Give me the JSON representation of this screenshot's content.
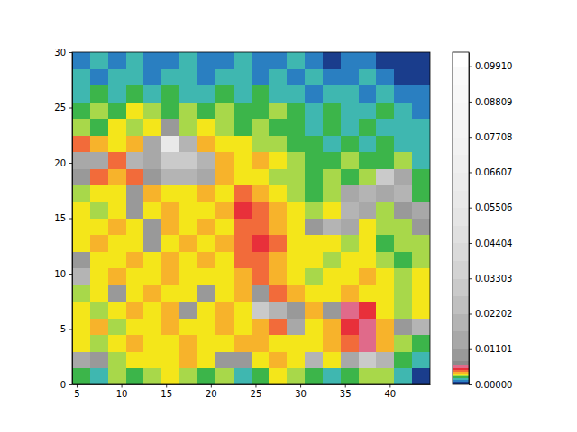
{
  "chart_data": {
    "type": "heatmap",
    "xlim": [
      4.5,
      44.5
    ],
    "ylim": [
      0,
      30
    ],
    "xticks": [
      5,
      10,
      15,
      20,
      25,
      30,
      35,
      40
    ],
    "yticks": [
      0,
      5,
      10,
      15,
      20,
      25,
      30
    ],
    "x_edges": [
      4.5,
      6.5,
      8.5,
      10.5,
      12.5,
      14.5,
      16.5,
      18.5,
      20.5,
      22.5,
      24.5,
      26.5,
      28.5,
      30.5,
      32.5,
      34.5,
      36.5,
      38.5,
      40.5,
      42.5,
      44.5
    ],
    "y_edges": [
      0,
      1.5,
      3,
      4.5,
      6,
      7.5,
      9,
      10.5,
      12,
      13.5,
      15,
      16.5,
      18,
      19.5,
      21,
      22.5,
      24,
      25.5,
      27,
      28.5,
      30
    ],
    "values": [
      [
        0.0022,
        0.0017,
        0.0027,
        0.0022,
        0.0027,
        0.0032,
        0.0027,
        0.0022,
        0.0027,
        0.0017,
        0.0022,
        0.0032,
        0.0027,
        0.0022,
        0.0017,
        0.0022,
        0.0027,
        0.0027,
        0.0017,
        0.0008
      ],
      [
        0.014,
        0.009,
        0.0027,
        0.0032,
        0.0032,
        0.0032,
        0.0037,
        0.0032,
        0.009,
        0.009,
        0.0032,
        0.0037,
        0.0032,
        0.02,
        0.0032,
        0.014,
        0.03,
        0.02,
        0.0022,
        0.0017
      ],
      [
        0.0032,
        0.0027,
        0.0032,
        0.0037,
        0.0032,
        0.0032,
        0.0037,
        0.0032,
        0.0032,
        0.0037,
        0.0037,
        0.0032,
        0.0032,
        0.0032,
        0.0037,
        0.0042,
        0.0055,
        0.0037,
        0.0027,
        0.0022
      ],
      [
        0.0032,
        0.0037,
        0.0027,
        0.0032,
        0.0032,
        0.0037,
        0.0032,
        0.0032,
        0.0037,
        0.0032,
        0.0037,
        0.0042,
        0.014,
        0.0032,
        0.0037,
        0.0047,
        0.0055,
        0.0037,
        0.009,
        0.02
      ],
      [
        0.0032,
        0.0027,
        0.0032,
        0.0037,
        0.0032,
        0.0037,
        0.009,
        0.0032,
        0.0037,
        0.0032,
        0.03,
        0.02,
        0.009,
        0.0037,
        0.009,
        0.0055,
        0.0047,
        0.0032,
        0.0027,
        0.0032
      ],
      [
        0.0027,
        0.0032,
        0.009,
        0.0032,
        0.0037,
        0.0032,
        0.0032,
        0.009,
        0.0032,
        0.0037,
        0.009,
        0.0042,
        0.0037,
        0.0032,
        0.0032,
        0.0037,
        0.0032,
        0.0032,
        0.0027,
        0.0032
      ],
      [
        0.02,
        0.0032,
        0.0037,
        0.0032,
        0.0032,
        0.0037,
        0.0032,
        0.0032,
        0.0032,
        0.0037,
        0.0042,
        0.0037,
        0.0032,
        0.0027,
        0.0032,
        0.0032,
        0.0037,
        0.0032,
        0.0027,
        0.0032
      ],
      [
        0.009,
        0.0032,
        0.0032,
        0.0037,
        0.0032,
        0.0037,
        0.0032,
        0.0037,
        0.0032,
        0.0042,
        0.0042,
        0.0037,
        0.0032,
        0.0032,
        0.0027,
        0.0032,
        0.0032,
        0.0027,
        0.0022,
        0.0027
      ],
      [
        0.0032,
        0.0037,
        0.0032,
        0.0032,
        0.009,
        0.0032,
        0.0037,
        0.0032,
        0.0037,
        0.0042,
        0.0047,
        0.0042,
        0.0032,
        0.0032,
        0.0032,
        0.0027,
        0.0032,
        0.0022,
        0.0027,
        0.0027
      ],
      [
        0.0032,
        0.0032,
        0.0037,
        0.0032,
        0.009,
        0.0037,
        0.0032,
        0.0037,
        0.0032,
        0.0042,
        0.0042,
        0.0037,
        0.0032,
        0.009,
        0.02,
        0.014,
        0.0032,
        0.0027,
        0.0027,
        0.009
      ],
      [
        0.0032,
        0.0027,
        0.0032,
        0.009,
        0.0032,
        0.0037,
        0.0032,
        0.0032,
        0.0037,
        0.0047,
        0.0042,
        0.0037,
        0.0032,
        0.0027,
        0.0032,
        0.02,
        0.014,
        0.0027,
        0.009,
        0.014
      ],
      [
        0.0027,
        0.0032,
        0.0032,
        0.009,
        0.0037,
        0.0032,
        0.0032,
        0.0037,
        0.0032,
        0.0042,
        0.0037,
        0.0032,
        0.0027,
        0.0022,
        0.0027,
        0.014,
        0.02,
        0.014,
        0.02,
        0.0022
      ],
      [
        0.009,
        0.0042,
        0.0037,
        0.0042,
        0.009,
        0.02,
        0.02,
        0.014,
        0.0037,
        0.0032,
        0.0032,
        0.0027,
        0.0027,
        0.0022,
        0.0027,
        0.0022,
        0.0027,
        0.03,
        0.014,
        0.0022
      ],
      [
        0.014,
        0.014,
        0.0042,
        0.02,
        0.014,
        0.03,
        0.03,
        0.02,
        0.0037,
        0.0032,
        0.0037,
        0.0032,
        0.0027,
        0.0022,
        0.0022,
        0.0027,
        0.0022,
        0.0022,
        0.0027,
        0.0017
      ],
      [
        0.0042,
        0.0037,
        0.0032,
        0.0037,
        0.014,
        0.06,
        0.02,
        0.0037,
        0.0032,
        0.0032,
        0.0027,
        0.0027,
        0.0022,
        0.0022,
        0.0017,
        0.0022,
        0.0017,
        0.0022,
        0.0017,
        0.0017
      ],
      [
        0.0027,
        0.0022,
        0.0032,
        0.0027,
        0.0032,
        0.009,
        0.0027,
        0.0032,
        0.0027,
        0.0022,
        0.0027,
        0.0022,
        0.0022,
        0.0017,
        0.0022,
        0.0017,
        0.0022,
        0.0017,
        0.0017,
        0.0017
      ],
      [
        0.0022,
        0.0027,
        0.0022,
        0.0032,
        0.0027,
        0.0022,
        0.0027,
        0.0022,
        0.0027,
        0.0022,
        0.0022,
        0.0027,
        0.0022,
        0.0017,
        0.0022,
        0.0017,
        0.0017,
        0.0022,
        0.0017,
        0.0012
      ],
      [
        0.0017,
        0.0022,
        0.0017,
        0.0022,
        0.0017,
        0.0022,
        0.0017,
        0.0017,
        0.0022,
        0.0017,
        0.0022,
        0.0017,
        0.0017,
        0.0012,
        0.0017,
        0.0017,
        0.0012,
        0.0017,
        0.0012,
        0.0012
      ],
      [
        0.0017,
        0.0012,
        0.0017,
        0.0017,
        0.0012,
        0.0017,
        0.0017,
        0.0012,
        0.0017,
        0.0017,
        0.0012,
        0.0017,
        0.0012,
        0.0017,
        0.0012,
        0.0012,
        0.0017,
        0.0012,
        0.0008,
        0.0008
      ],
      [
        0.0012,
        0.0017,
        0.0012,
        0.0017,
        0.0012,
        0.0012,
        0.0017,
        0.0012,
        0.0012,
        0.0017,
        0.0012,
        0.0012,
        0.0017,
        0.0012,
        0.0008,
        0.0012,
        0.0012,
        0.0008,
        0.0008,
        0.0008
      ]
    ],
    "colorbar": {
      "range": [
        0,
        0.1035
      ],
      "levels": [
        0,
        0.001,
        0.0015,
        0.002,
        0.0025,
        0.003,
        0.0035,
        0.004,
        0.0045,
        0.005,
        0.006,
        0.0075,
        0.011,
        0.0165,
        0.022,
        0.0275,
        0.033,
        0.0385,
        0.044,
        0.0495,
        0.055,
        0.0605,
        0.066,
        0.0715,
        0.077,
        0.0825,
        0.088,
        0.0935,
        0.099,
        0.1035
      ],
      "colors": [
        "#1a3d8c",
        "#2a7fc1",
        "#3fb7b0",
        "#3cb54a",
        "#a8d84a",
        "#f4e61a",
        "#f7b32b",
        "#f26b3a",
        "#e8303a",
        "#e06a8a",
        "#8a8a8a",
        "#999999",
        "#a8a8a8",
        "#b4b4b4",
        "#c0c0c0",
        "#cacaca",
        "#d3d3d3",
        "#dadada",
        "#e0e0e0",
        "#e5e5e5",
        "#e9e9e9",
        "#ececec",
        "#efefef",
        "#f2f2f2",
        "#f4f4f4",
        "#f6f6f6",
        "#f8f8f8",
        "#fafafa",
        "#ffffff"
      ],
      "ticks": [
        {
          "value": 0,
          "label": "0.00000"
        },
        0.01101,
        0.02202,
        0.03303,
        0.04404,
        0.05506,
        0.06607,
        0.07708,
        0.08809,
        {
          "value": 0.0991,
          "label": "0.09910"
        }
      ]
    }
  }
}
